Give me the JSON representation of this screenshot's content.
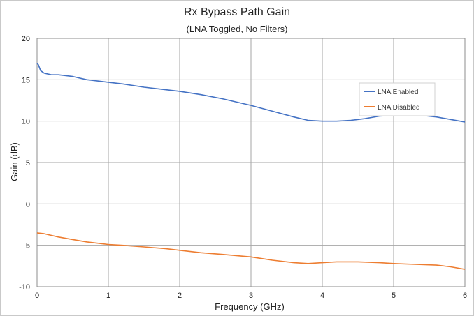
{
  "chart_data": {
    "type": "line",
    "title": "Rx Bypass Path Gain",
    "subtitle": "(LNA Toggled, No Filters)",
    "xlabel": "Frequency (GHz)",
    "ylabel": "Gain (dB)",
    "xlim": [
      0,
      6
    ],
    "ylim": [
      -10,
      20
    ],
    "xticks": [
      0,
      1,
      2,
      3,
      4,
      5,
      6
    ],
    "yticks": [
      -10,
      -5,
      0,
      5,
      10,
      15,
      20
    ],
    "grid": true,
    "legend_position": "top-right",
    "series": [
      {
        "name": "LNA Enabled",
        "color": "#4472c4",
        "x": [
          0.0,
          0.02,
          0.05,
          0.1,
          0.2,
          0.3,
          0.5,
          0.7,
          0.9,
          1.0,
          1.2,
          1.5,
          1.8,
          2.0,
          2.3,
          2.6,
          3.0,
          3.3,
          3.6,
          3.8,
          4.0,
          4.2,
          4.4,
          4.6,
          4.8,
          5.0,
          5.2,
          5.4,
          5.6,
          5.8,
          6.0
        ],
        "y": [
          17.0,
          16.8,
          16.1,
          15.8,
          15.6,
          15.6,
          15.4,
          15.0,
          14.8,
          14.7,
          14.5,
          14.1,
          13.8,
          13.6,
          13.2,
          12.7,
          11.9,
          11.2,
          10.5,
          10.1,
          10.0,
          10.0,
          10.1,
          10.3,
          10.6,
          10.7,
          10.8,
          10.7,
          10.5,
          10.2,
          9.9
        ]
      },
      {
        "name": "LNA Disabled",
        "color": "#ed7d31",
        "x": [
          0.0,
          0.1,
          0.3,
          0.5,
          0.7,
          0.9,
          1.0,
          1.2,
          1.5,
          1.8,
          2.0,
          2.3,
          2.6,
          3.0,
          3.3,
          3.6,
          3.8,
          4.0,
          4.2,
          4.5,
          4.8,
          5.0,
          5.3,
          5.6,
          5.8,
          6.0
        ],
        "y": [
          -3.5,
          -3.6,
          -4.0,
          -4.3,
          -4.6,
          -4.8,
          -4.9,
          -5.0,
          -5.2,
          -5.4,
          -5.6,
          -5.9,
          -6.1,
          -6.4,
          -6.8,
          -7.1,
          -7.2,
          -7.1,
          -7.0,
          -7.0,
          -7.1,
          -7.2,
          -7.3,
          -7.4,
          -7.6,
          -7.9
        ]
      }
    ]
  }
}
